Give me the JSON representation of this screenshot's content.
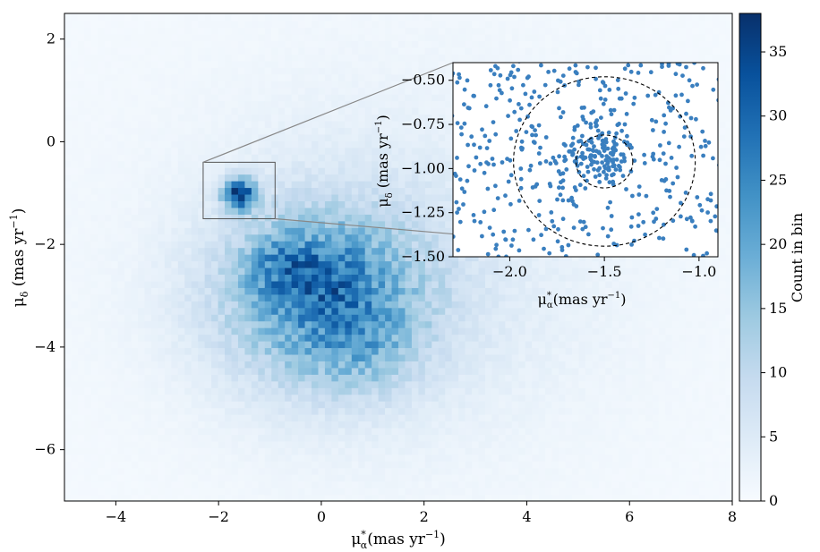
{
  "chart_data": [
    {
      "type": "heatmap",
      "role": "main",
      "xlabel": "μ*α(mas yr⁻¹)",
      "xlabel_parts": {
        "base": "μ",
        "sup": "*",
        "sub": "α",
        "rest": "(mas yr",
        "exp": "−1",
        "close": ")"
      },
      "ylabel": "μδ (mas yr⁻¹)",
      "ylabel_parts": {
        "base": "μ",
        "sub": "δ",
        "rest": " (mas yr",
        "exp": "−1",
        "close": ")"
      },
      "xlim": [
        -5,
        8
      ],
      "ylim": [
        -7,
        2.5
      ],
      "xticks": [
        -4,
        -2,
        0,
        2,
        4,
        6,
        8
      ],
      "yticks": [
        2,
        0,
        -2,
        -4,
        -6
      ],
      "xtick_labels": [
        "−4",
        "−2",
        "0",
        "2",
        "4",
        "6",
        "8"
      ],
      "ytick_labels": [
        "2",
        "0",
        "−2",
        "−4",
        "−6"
      ],
      "colormap": "Blues",
      "colormap_stops": [
        "#f7fbff",
        "#deebf7",
        "#c6dbef",
        "#9ecae1",
        "#6baed6",
        "#4292c6",
        "#2171b5",
        "#08519c",
        "#08306b"
      ],
      "density_components": [
        {
          "x": -1.6,
          "y": -1.0,
          "sx": 0.22,
          "sy": 0.22,
          "peak": 30
        },
        {
          "x": 0.0,
          "y": -3.0,
          "sx": 1.4,
          "sy": 1.2,
          "peak": 20
        },
        {
          "x": -0.8,
          "y": -2.4,
          "sx": 0.45,
          "sy": 0.45,
          "peak": 8
        },
        {
          "x": 0.2,
          "y": -2.6,
          "sx": 0.5,
          "sy": 0.5,
          "peak": 6
        },
        {
          "x": 0.9,
          "y": -4.0,
          "sx": 0.7,
          "sy": 0.6,
          "peak": 5
        },
        {
          "x": 1.5,
          "y": -2.6,
          "sx": 2.5,
          "sy": 2.2,
          "peak": 4
        },
        {
          "x": 1.5,
          "y": -2.0,
          "sx": 7.0,
          "sy": 5.0,
          "peak": 1.5
        }
      ],
      "zoom_box": {
        "x": [
          -2.3,
          -0.9
        ],
        "y": [
          -1.5,
          -0.4
        ]
      }
    },
    {
      "type": "scatter",
      "role": "inset",
      "xlabel": "μ*α(mas yr⁻¹)",
      "xlabel_parts": {
        "base": "μ",
        "sup": "*",
        "sub": "α",
        "rest": "(mas yr",
        "exp": "−1",
        "close": ")"
      },
      "ylabel": "μδ (mas yr⁻¹)",
      "ylabel_parts": {
        "base": "μ",
        "sub": "δ",
        "rest": " (mas yr",
        "exp": "−1",
        "close": ")"
      },
      "xlim": [
        -2.3,
        -0.9
      ],
      "ylim": [
        -1.5,
        -0.4
      ],
      "xticks": [
        -2.0,
        -1.5,
        -1.0
      ],
      "yticks": [
        -0.5,
        -0.75,
        -1.0,
        -1.25,
        -1.5
      ],
      "xtick_labels": [
        "−2.0",
        "−1.5",
        "−1.0"
      ],
      "ytick_labels": [
        "−0.50",
        "−0.75",
        "−1.00",
        "−1.25",
        "−1.50"
      ],
      "point_color": "#3a7fbf",
      "approx_point_count": 600,
      "cluster_center": {
        "x": -1.53,
        "y": -0.93
      },
      "circles": [
        {
          "cx": -1.5,
          "cy": -0.96,
          "r": 0.15,
          "style": "dashed"
        },
        {
          "cx": -1.5,
          "cy": -0.96,
          "r": 0.48,
          "style": "dashed"
        }
      ]
    },
    {
      "type": "colorbar",
      "label": "Count in bin",
      "range": [
        0,
        38
      ],
      "ticks": [
        0,
        5,
        10,
        15,
        20,
        25,
        30,
        35
      ],
      "tick_labels": [
        "0",
        "5",
        "10",
        "15",
        "20",
        "25",
        "30",
        "35"
      ]
    }
  ]
}
